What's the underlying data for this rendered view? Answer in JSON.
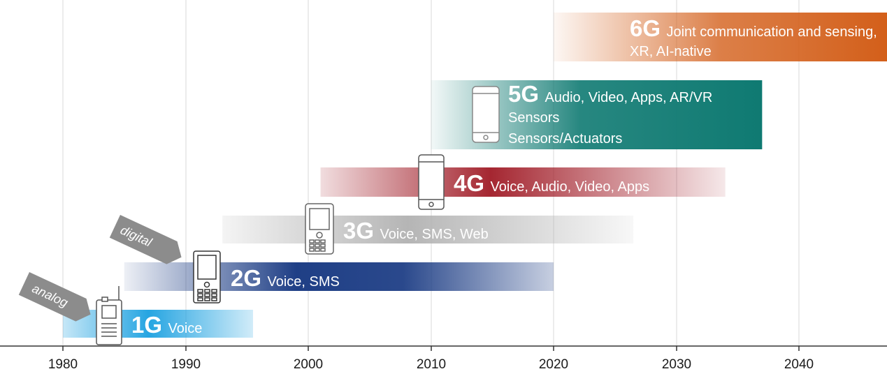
{
  "timeline": {
    "years": [
      "1980",
      "1990",
      "2000",
      "2010",
      "2020",
      "2030",
      "2040"
    ],
    "tags": {
      "analog": "analog",
      "digital": "digital"
    },
    "generations": [
      {
        "id": "1g",
        "name": "1G",
        "description": [
          "Voice"
        ],
        "start_year": 1980,
        "end_year": 1995.5,
        "color": "#1aa0e0"
      },
      {
        "id": "2g",
        "name": "2G",
        "description": [
          "Voice, SMS"
        ],
        "start_year": 1985,
        "end_year": 2020,
        "color": "#1f3f86"
      },
      {
        "id": "3g",
        "name": "3G",
        "description": [
          "Voice, SMS, Web"
        ],
        "start_year": 1993,
        "end_year": 2026.5,
        "color": "#b9b9b9"
      },
      {
        "id": "4g",
        "name": "4G",
        "description": [
          "Voice, Audio, Video, Apps"
        ],
        "start_year": 2001,
        "end_year": 2034,
        "color": "#a01b26"
      },
      {
        "id": "5g",
        "name": "5G",
        "description": [
          "Audio, Video, Apps, AR/VR",
          "Sensors",
          "Sensors/Actuators"
        ],
        "start_year": 2010,
        "end_year": 2037,
        "color": "#0f7a72"
      },
      {
        "id": "6g",
        "name": "6G",
        "description": [
          "Joint communication and sensing,",
          "XR, AI-native"
        ],
        "start_year": 2020,
        "end_year": 2047.5,
        "color": "#d35f1a"
      }
    ]
  }
}
